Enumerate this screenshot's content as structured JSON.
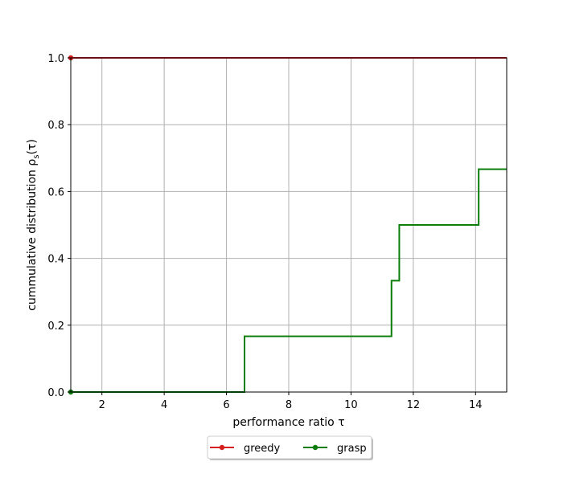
{
  "chart_data": {
    "type": "line",
    "step": true,
    "xlabel": "performance ratio τ",
    "ylabel": "cummulative distribution ρ",
    "ylabel_sub": "s",
    "ylabel_tail": "(τ)",
    "xlim": [
      1,
      15
    ],
    "ylim": [
      0,
      1
    ],
    "xticks": [
      2,
      4,
      6,
      8,
      10,
      12,
      14
    ],
    "xtick_labels": [
      "2",
      "4",
      "6",
      "8",
      "10",
      "12",
      "14"
    ],
    "yticks": [
      0,
      0.2,
      0.4,
      0.6,
      0.8,
      1.0
    ],
    "ytick_labels": [
      "0.0",
      "0.2",
      "0.4",
      "0.6",
      "0.8",
      "1.0"
    ],
    "grid": true,
    "legend_position": "bottom-center",
    "series": [
      {
        "name": "greedy",
        "color": "#d62020",
        "marker": "circle",
        "x": [
          1,
          15
        ],
        "y": [
          1.0,
          1.0
        ]
      },
      {
        "name": "grasp",
        "color": "#0a7d0a",
        "marker": "circle",
        "x": [
          1,
          6.58,
          11.3,
          11.55,
          14.1,
          15
        ],
        "y": [
          0,
          0.1667,
          0.3333,
          0.5,
          0.6667,
          0.6667
        ]
      }
    ]
  }
}
